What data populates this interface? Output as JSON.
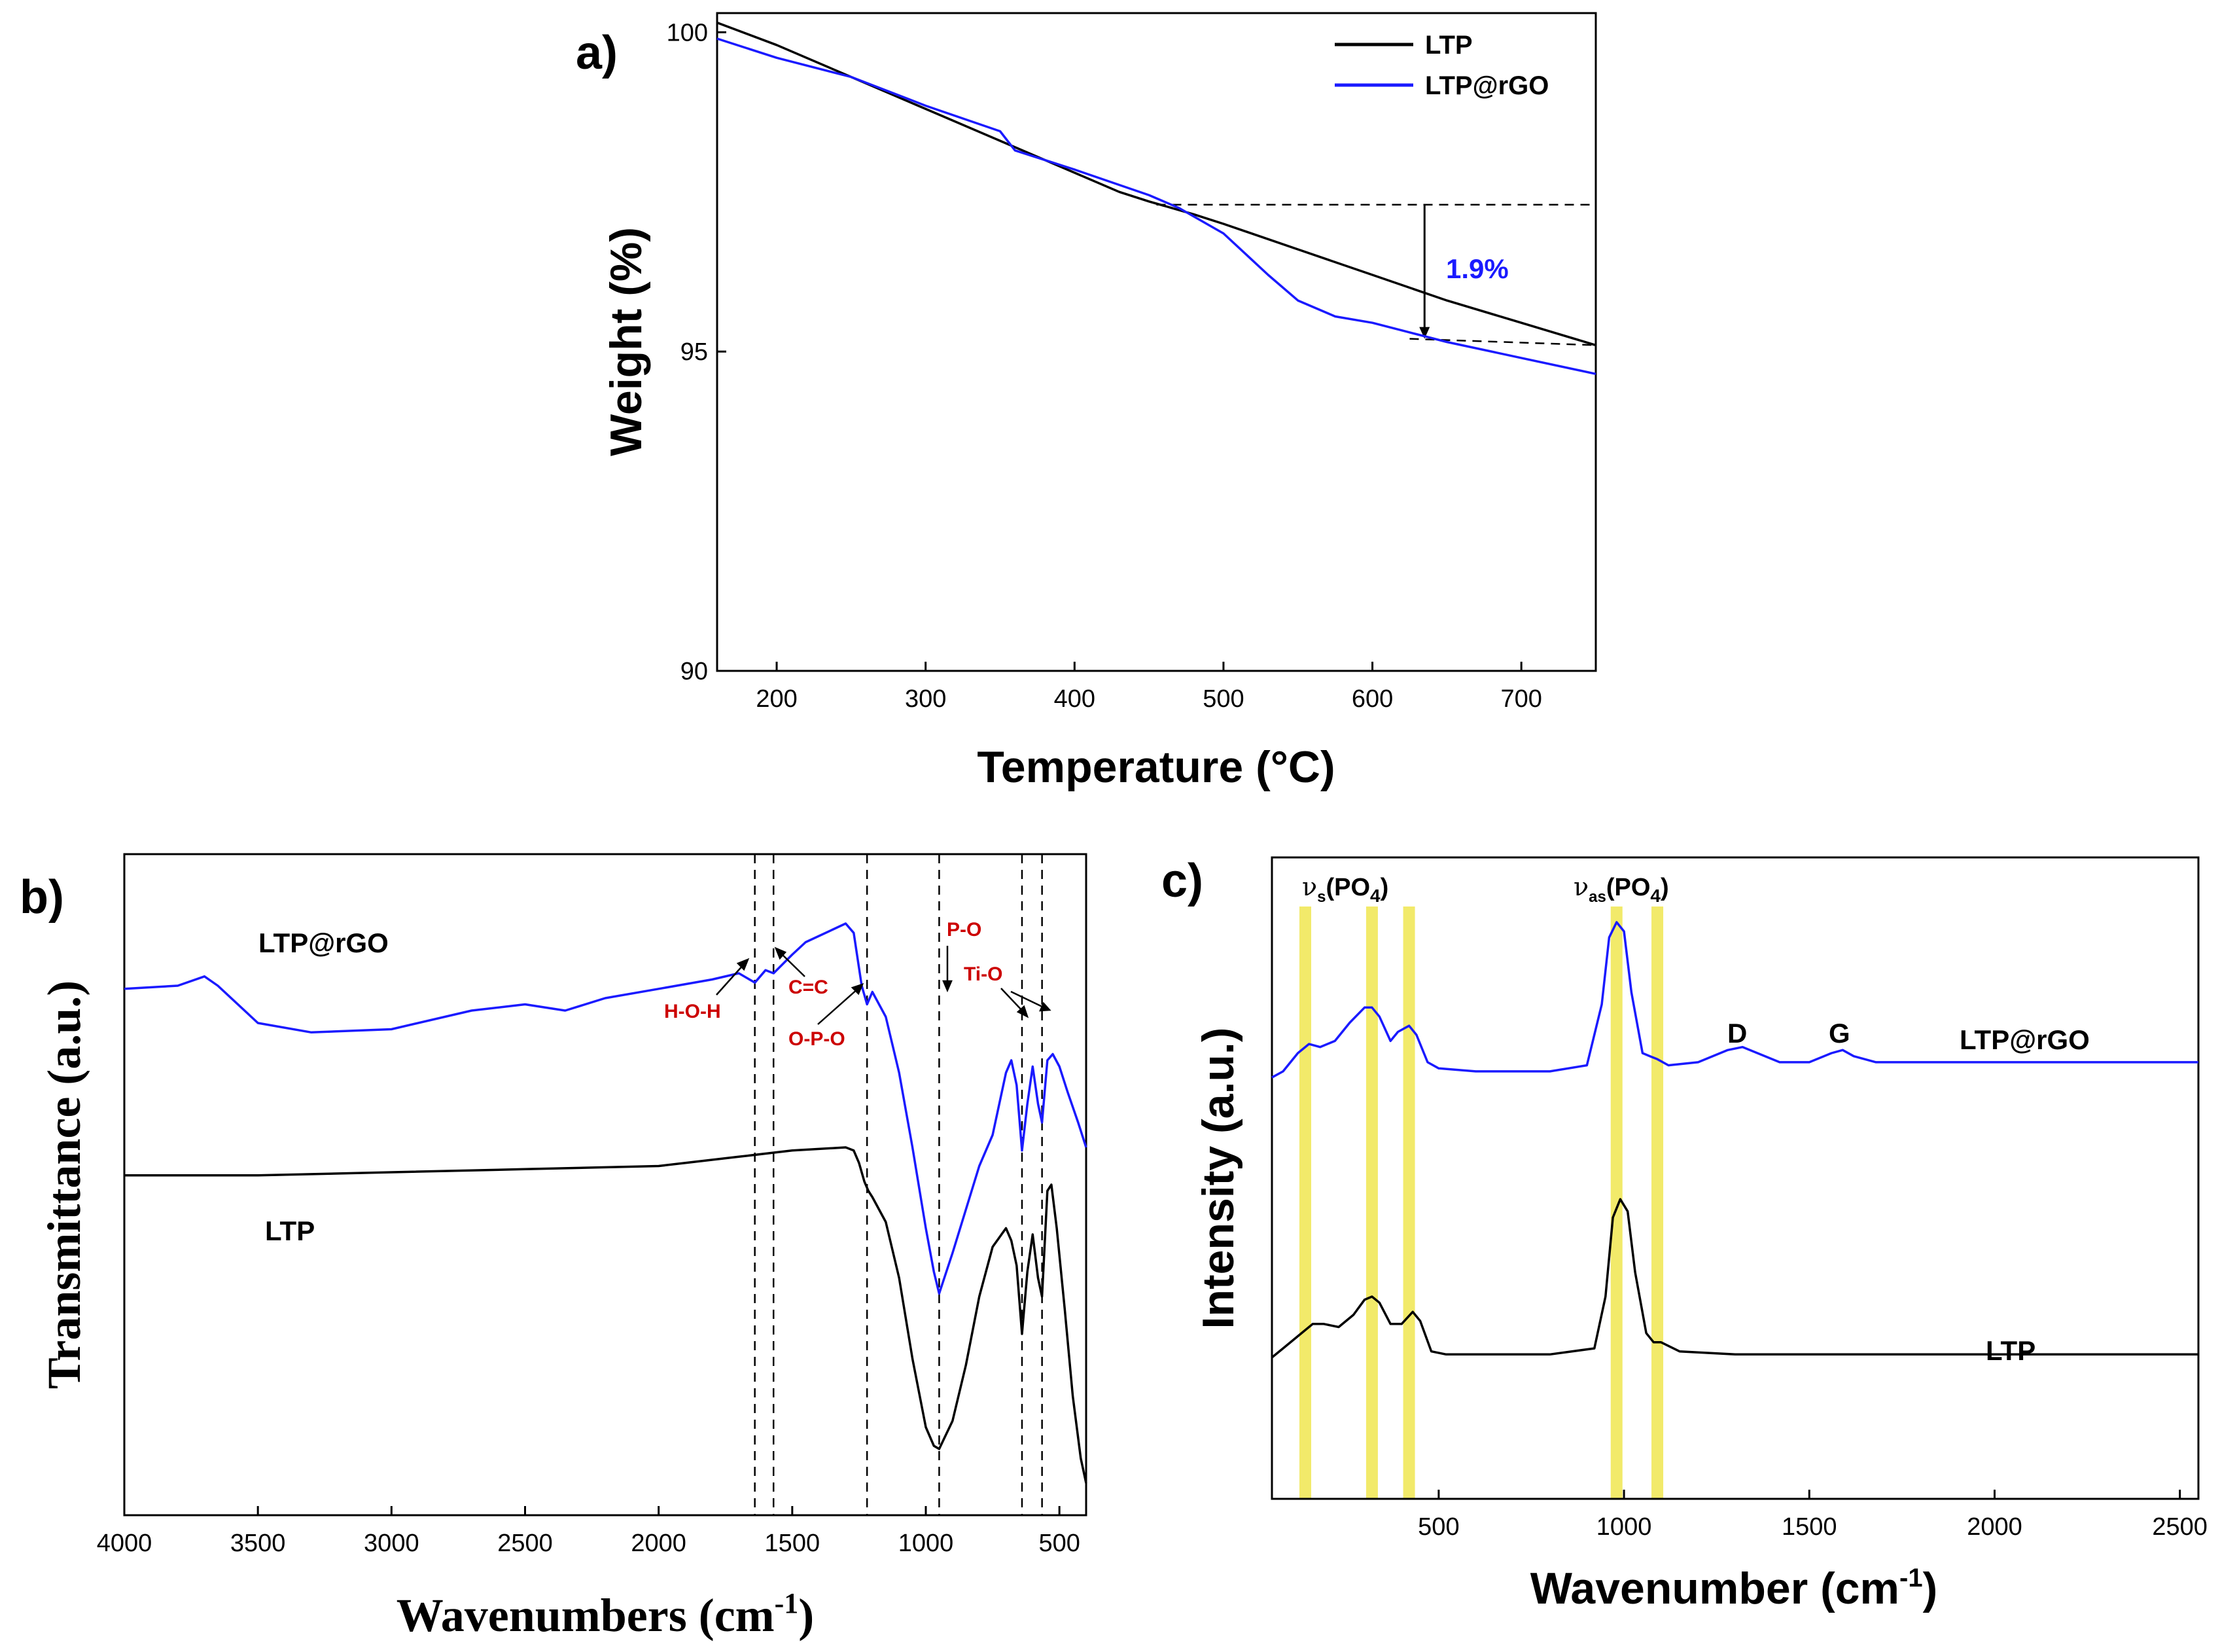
{
  "colors": {
    "ltp": "#000000",
    "ltp_rgo": "#1a1aff",
    "annotation_red": "#cc0000",
    "highlight": "#f2ea6a"
  },
  "chart_data": [
    {
      "panel": "a)",
      "type": "line",
      "xlabel": "Temperature (°C)",
      "ylabel": "Weight (%)",
      "xlim": [
        160,
        750
      ],
      "ylim": [
        90,
        100.3
      ],
      "xticks": [
        200,
        300,
        400,
        500,
        600,
        700
      ],
      "yticks": [
        90,
        95,
        100
      ],
      "legend": {
        "placement": "top-right",
        "entries": [
          "LTP",
          "LTP@rGO"
        ]
      },
      "annotation": {
        "text": "1.9%",
        "x": 635,
        "from_y": 97.3,
        "to_y": 95.2
      },
      "series": [
        {
          "name": "LTP",
          "color": "#000000",
          "x": [
            160,
            200,
            250,
            300,
            350,
            400,
            430,
            450,
            480,
            500,
            550,
            600,
            650,
            700,
            750
          ],
          "y": [
            100.15,
            99.8,
            99.3,
            98.8,
            98.3,
            97.8,
            97.5,
            97.35,
            97.15,
            97.0,
            96.6,
            96.2,
            95.8,
            95.45,
            95.1
          ]
        },
        {
          "name": "LTP@rGO",
          "color": "#1a1aff",
          "x": [
            160,
            200,
            250,
            300,
            350,
            360,
            400,
            450,
            470,
            500,
            530,
            550,
            575,
            600,
            650,
            700,
            750
          ],
          "y": [
            99.9,
            99.6,
            99.3,
            98.85,
            98.45,
            98.15,
            97.85,
            97.45,
            97.25,
            96.85,
            96.2,
            95.8,
            95.55,
            95.45,
            95.15,
            94.9,
            94.65
          ]
        }
      ]
    },
    {
      "panel": "b)",
      "type": "line",
      "xlabel_main": "Wavenumbers (cm",
      "xlabel_sup": "-1",
      "xlabel_end": ")",
      "ylabel": "Transmittance (a.u.)",
      "xlim": [
        4000,
        400
      ],
      "ylim": [
        0,
        1
      ],
      "xticks": [
        4000,
        3500,
        3000,
        2500,
        2000,
        1500,
        1000,
        500
      ],
      "reference_lines": [
        1640,
        1570,
        1220,
        950,
        640,
        565
      ],
      "annotations": [
        "H-O-H",
        "C=C",
        "O-P-O",
        "P-O",
        "Ti-O"
      ],
      "series": [
        {
          "name": "LTP@rGO",
          "color": "#1a1aff",
          "x": [
            4000,
            3800,
            3700,
            3650,
            3500,
            3300,
            3000,
            2700,
            2500,
            2350,
            2200,
            2000,
            1800,
            1700,
            1640,
            1600,
            1570,
            1500,
            1450,
            1350,
            1300,
            1270,
            1240,
            1220,
            1200,
            1150,
            1100,
            1050,
            1000,
            970,
            950,
            900,
            800,
            750,
            700,
            680,
            660,
            640,
            620,
            600,
            580,
            565,
            545,
            525,
            500,
            470,
            430,
            400
          ],
          "y": [
            0.815,
            0.82,
            0.835,
            0.82,
            0.76,
            0.745,
            0.75,
            0.78,
            0.79,
            0.78,
            0.8,
            0.815,
            0.83,
            0.84,
            0.825,
            0.845,
            0.84,
            0.87,
            0.89,
            0.91,
            0.92,
            0.905,
            0.82,
            0.79,
            0.81,
            0.77,
            0.68,
            0.56,
            0.43,
            0.36,
            0.325,
            0.39,
            0.53,
            0.58,
            0.68,
            0.7,
            0.66,
            0.555,
            0.63,
            0.69,
            0.63,
            0.6,
            0.7,
            0.71,
            0.69,
            0.65,
            0.6,
            0.56
          ]
        },
        {
          "name": "LTP",
          "color": "#000000",
          "x": [
            4000,
            3500,
            3000,
            2500,
            2000,
            1700,
            1500,
            1300,
            1270,
            1250,
            1230,
            1215,
            1200,
            1150,
            1100,
            1050,
            1000,
            970,
            950,
            900,
            850,
            800,
            750,
            700,
            680,
            660,
            640,
            620,
            600,
            580,
            565,
            545,
            530,
            510,
            480,
            450,
            420,
            400
          ],
          "y": [
            0.515,
            0.515,
            0.52,
            0.525,
            0.53,
            0.545,
            0.555,
            0.56,
            0.555,
            0.535,
            0.505,
            0.49,
            0.48,
            0.44,
            0.35,
            0.22,
            0.11,
            0.08,
            0.075,
            0.12,
            0.21,
            0.32,
            0.4,
            0.43,
            0.41,
            0.37,
            0.26,
            0.36,
            0.42,
            0.35,
            0.32,
            0.49,
            0.5,
            0.43,
            0.3,
            0.16,
            0.06,
            0.02
          ]
        }
      ]
    },
    {
      "panel": "c)",
      "type": "line",
      "xlabel_main": "Wavenumber (cm",
      "xlabel_sup": "-1",
      "xlabel_end": ")",
      "ylabel": "Intensity (a.u.)",
      "xlim": [
        50,
        2550
      ],
      "ylim": [
        0,
        1
      ],
      "xticks": [
        500,
        1000,
        1500,
        2000,
        2500
      ],
      "highlight_bands": [
        140,
        320,
        420,
        980,
        1090
      ],
      "band_labels": [
        {
          "main": "ν",
          "sub": "s",
          "text": "(PO",
          "sub2": "4",
          "end": ")"
        },
        {
          "main": "ν",
          "sub": "as",
          "text": "(PO",
          "sub2": "4",
          "end": ")"
        }
      ],
      "peak_labels": [
        "D",
        "G"
      ],
      "series": [
        {
          "name": "LTP@rGO",
          "color": "#1a1aff",
          "x": [
            50,
            80,
            120,
            150,
            180,
            220,
            260,
            300,
            320,
            340,
            370,
            390,
            420,
            440,
            470,
            500,
            600,
            800,
            900,
            940,
            960,
            980,
            1000,
            1020,
            1050,
            1070,
            1090,
            1120,
            1200,
            1280,
            1320,
            1360,
            1420,
            1500,
            1560,
            1590,
            1620,
            1680,
            1800,
            2000,
            2200,
            2550
          ],
          "y": [
            0.66,
            0.67,
            0.7,
            0.715,
            0.71,
            0.72,
            0.75,
            0.775,
            0.775,
            0.76,
            0.72,
            0.735,
            0.745,
            0.73,
            0.685,
            0.675,
            0.67,
            0.67,
            0.68,
            0.78,
            0.89,
            0.915,
            0.9,
            0.8,
            0.7,
            0.695,
            0.69,
            0.68,
            0.685,
            0.705,
            0.71,
            0.7,
            0.685,
            0.685,
            0.7,
            0.705,
            0.695,
            0.685,
            0.685,
            0.685,
            0.685,
            0.685
          ]
        },
        {
          "name": "LTP",
          "color": "#000000",
          "x": [
            50,
            80,
            120,
            160,
            190,
            230,
            270,
            300,
            320,
            340,
            370,
            400,
            430,
            450,
            480,
            520,
            600,
            800,
            920,
            950,
            970,
            990,
            1010,
            1030,
            1060,
            1080,
            1100,
            1150,
            1300,
            1600,
            2000,
            2550
          ],
          "y": [
            0.2,
            0.215,
            0.235,
            0.255,
            0.255,
            0.25,
            0.27,
            0.295,
            0.3,
            0.29,
            0.255,
            0.255,
            0.275,
            0.26,
            0.21,
            0.205,
            0.205,
            0.205,
            0.215,
            0.3,
            0.43,
            0.46,
            0.44,
            0.34,
            0.24,
            0.225,
            0.225,
            0.21,
            0.205,
            0.205,
            0.205,
            0.205
          ]
        }
      ]
    }
  ]
}
